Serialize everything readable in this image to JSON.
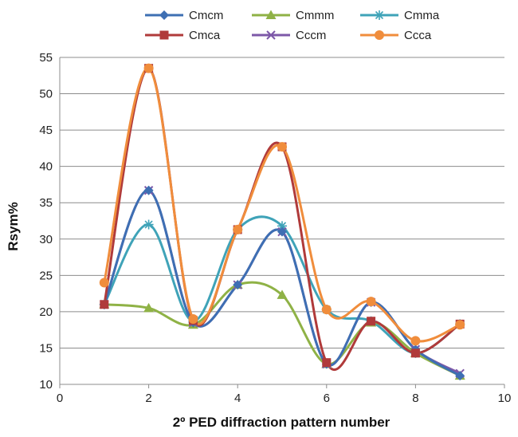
{
  "chart_data": {
    "type": "line",
    "title": "",
    "xlabel": "2º PED diffraction pattern number",
    "ylabel": "Rsym%",
    "xlim": [
      0,
      10
    ],
    "ylim": [
      10,
      55
    ],
    "xticks": [
      0,
      2,
      4,
      6,
      8,
      10
    ],
    "yticks": [
      10,
      15,
      20,
      25,
      30,
      35,
      40,
      45,
      50,
      55
    ],
    "grid": "horizontal",
    "legend_position": "top",
    "smooth": true,
    "x": [
      1,
      2,
      3,
      4,
      5,
      6,
      7,
      8,
      9
    ],
    "series": [
      {
        "name": "Cmcm",
        "color": "#3e6fb3",
        "marker": "diamond",
        "values": [
          21.0,
          36.7,
          18.5,
          23.7,
          31.0,
          12.8,
          21.3,
          14.8,
          11.2
        ]
      },
      {
        "name": "Cmca",
        "color": "#b03a3a",
        "marker": "square",
        "values": [
          21.0,
          53.5,
          18.8,
          31.3,
          42.7,
          13.0,
          18.7,
          14.3,
          18.3
        ]
      },
      {
        "name": "Cmmm",
        "color": "#8fb246",
        "marker": "triangle",
        "values": [
          21.0,
          20.5,
          18.2,
          23.7,
          22.3,
          12.8,
          18.5,
          14.3,
          11.2
        ]
      },
      {
        "name": "Cccm",
        "color": "#7d58a8",
        "marker": "x",
        "values": [
          21.0,
          36.7,
          18.5,
          23.7,
          31.0,
          12.8,
          21.3,
          14.8,
          11.5
        ]
      },
      {
        "name": "Cmma",
        "color": "#3fa3b8",
        "marker": "star",
        "values": [
          21.0,
          32.0,
          18.7,
          31.3,
          31.8,
          20.3,
          18.7,
          14.3,
          18.3
        ]
      },
      {
        "name": "Ccca",
        "color": "#f08d3c",
        "marker": "circle",
        "values": [
          24.0,
          53.5,
          19.0,
          31.3,
          42.7,
          20.3,
          21.4,
          16.0,
          18.2
        ]
      }
    ]
  }
}
